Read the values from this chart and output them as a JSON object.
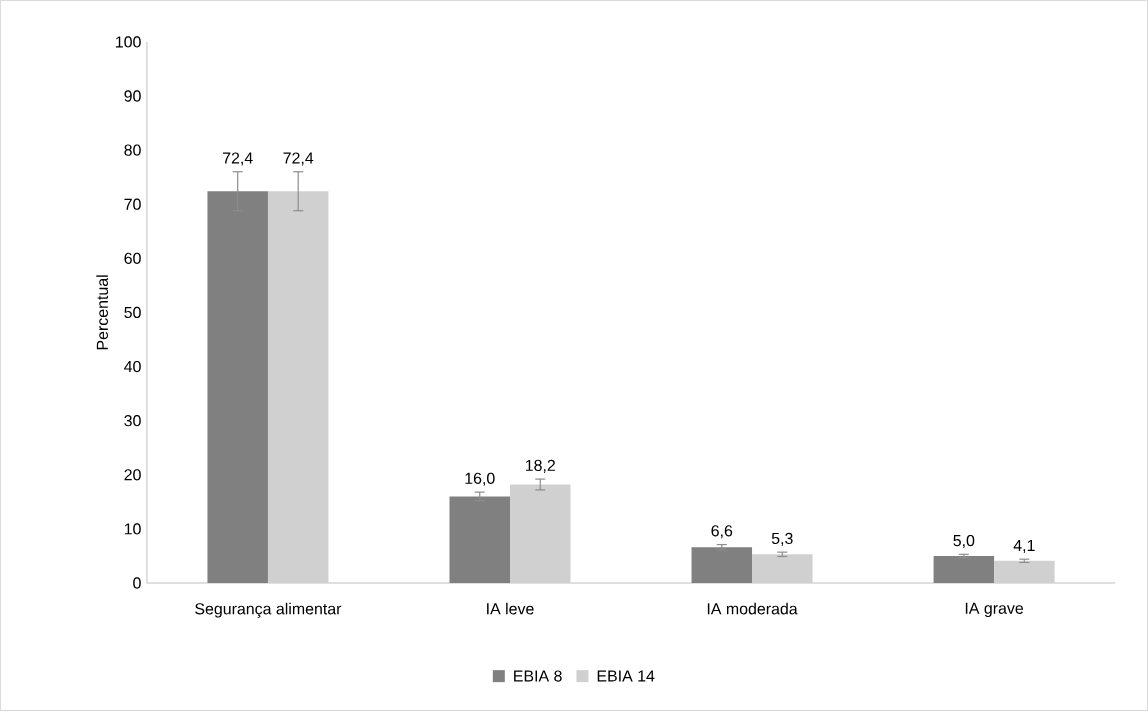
{
  "chart_data": {
    "type": "bar",
    "ylabel": "Percentual",
    "categories": [
      "Segurança alimentar",
      "IA leve",
      "IA moderada",
      "IA grave"
    ],
    "series": [
      {
        "name": "EBIA 8",
        "color": "#808080",
        "values": [
          72.4,
          16.0,
          6.6,
          5.0
        ],
        "errors": [
          3.6,
          0.8,
          0.5,
          0.3
        ],
        "value_labels": [
          "72,4",
          "16,0",
          "6,6",
          "5,0"
        ]
      },
      {
        "name": "EBIA 14",
        "color": "#d0d0d0",
        "values": [
          72.4,
          18.2,
          5.3,
          4.1
        ],
        "errors": [
          3.6,
          1.0,
          0.4,
          0.3
        ],
        "value_labels": [
          "72,4",
          "18,2",
          "5,3",
          "4,1"
        ]
      }
    ],
    "ylim": [
      0,
      100
    ],
    "yticks": [
      0,
      10,
      20,
      30,
      40,
      50,
      60,
      70,
      80,
      90,
      100
    ],
    "grid": false,
    "legend": "bottom"
  }
}
